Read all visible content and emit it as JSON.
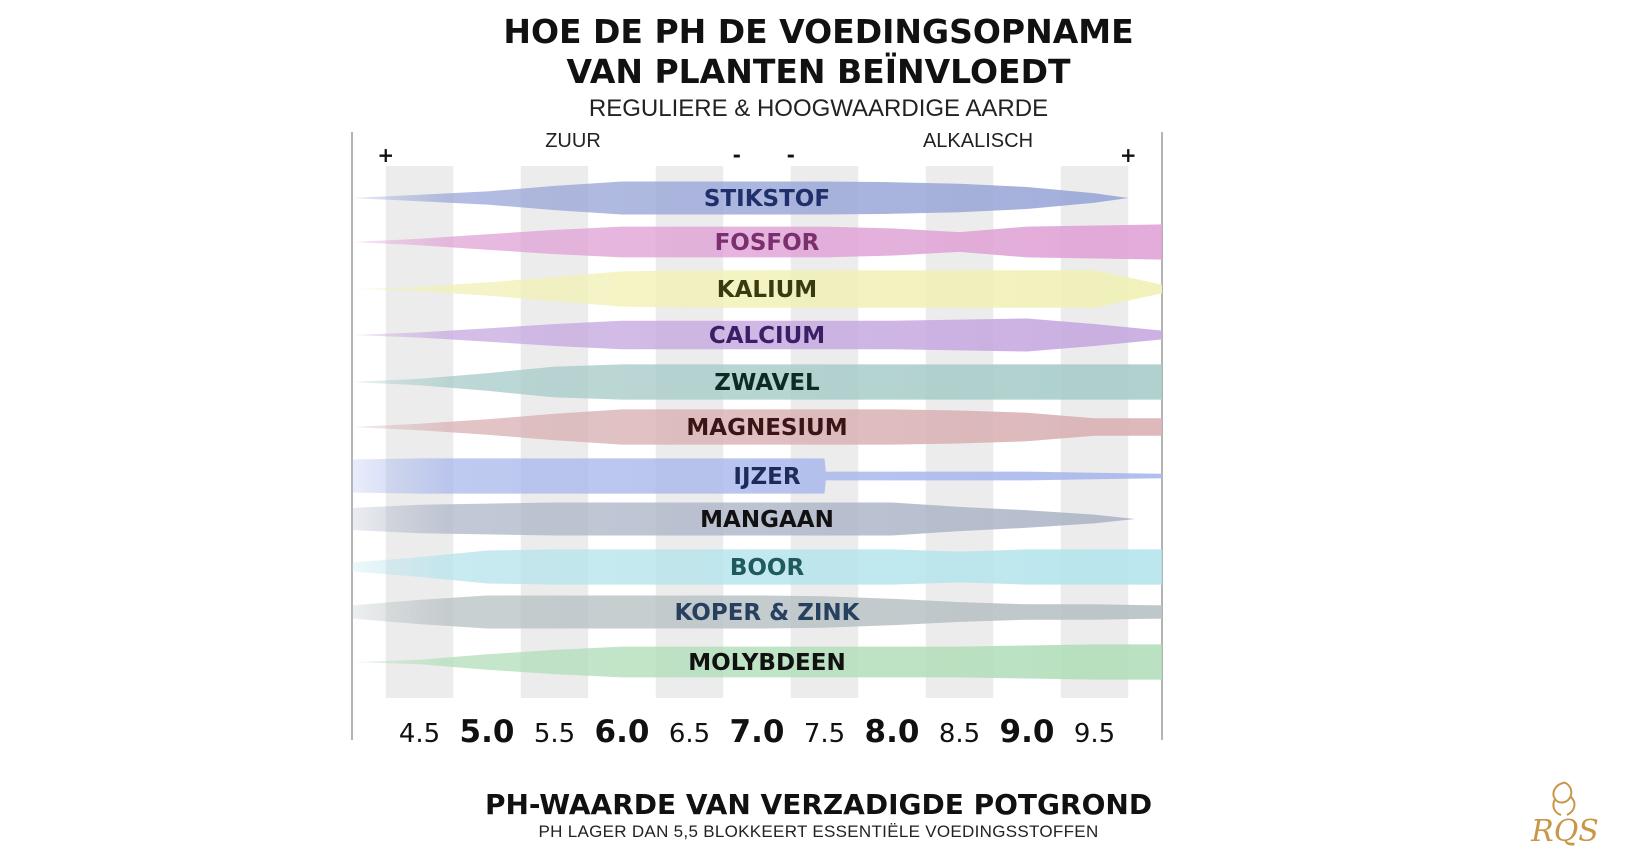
{
  "title_line1": "HOE DE PH DE VOEDINGSOPNAME",
  "title_line2": "VAN PLANTEN BEÏNVLOEDT",
  "subtitle": "REGULIERE & HOOGWAARDIGE AARDE",
  "xlabel": "PH-WAARDE VAN VERZADIGDE POTGROND",
  "note": "PH LAGER DAN 5,5 BLOKKEERT ESSENTIËLE VOEDINGSSTOFFEN",
  "logo_text": "RQS",
  "chart_data": {
    "type": "area",
    "xlim": [
      4,
      10
    ],
    "region_labels": {
      "left": "ZUUR",
      "right": "ALKALISCH"
    },
    "markers": [
      {
        "x": 4.25,
        "label": "+"
      },
      {
        "x": 6.85,
        "label": "-"
      },
      {
        "x": 7.25,
        "label": "-"
      },
      {
        "x": 9.75,
        "label": "+"
      }
    ],
    "ticks": [
      {
        "value": 4.5,
        "label": "4.5",
        "major": false
      },
      {
        "value": 5.0,
        "label": "5.0",
        "major": true
      },
      {
        "value": 5.5,
        "label": "5.5",
        "major": false
      },
      {
        "value": 6.0,
        "label": "6.0",
        "major": true
      },
      {
        "value": 6.5,
        "label": "6.5",
        "major": false
      },
      {
        "value": 7.0,
        "label": "7.0",
        "major": true
      },
      {
        "value": 7.5,
        "label": "7.5",
        "major": false
      },
      {
        "value": 8.0,
        "label": "8.0",
        "major": true
      },
      {
        "value": 8.5,
        "label": "8.5",
        "major": false
      },
      {
        "value": 9.0,
        "label": "9.0",
        "major": true
      },
      {
        "value": 9.5,
        "label": "9.5",
        "major": false
      }
    ],
    "series": [
      {
        "name": "STIKSTOF",
        "color": "#9aa7d8",
        "label_color": "#1f2f6b",
        "x": [
          4.0,
          4.5,
          5.0,
          5.5,
          6.0,
          6.5,
          7.0,
          7.5,
          8.0,
          8.5,
          9.0,
          9.5,
          9.75,
          10.0
        ],
        "w": [
          0.0,
          0.15,
          0.3,
          0.55,
          0.75,
          0.75,
          0.75,
          0.75,
          0.72,
          0.65,
          0.5,
          0.22,
          0.0,
          0.0
        ]
      },
      {
        "name": "FOSFOR",
        "color": "#e0a3d6",
        "label_color": "#7a2f6e",
        "x": [
          4.0,
          4.5,
          5.0,
          5.5,
          6.0,
          6.5,
          7.0,
          7.5,
          8.0,
          8.5,
          9.0,
          9.5,
          10.0
        ],
        "w": [
          0.0,
          0.15,
          0.35,
          0.55,
          0.7,
          0.7,
          0.7,
          0.7,
          0.62,
          0.45,
          0.7,
          0.75,
          0.8
        ]
      },
      {
        "name": "KALIUM",
        "color": "#f1f1b6",
        "label_color": "#3a3a10",
        "x": [
          4.0,
          4.5,
          5.0,
          5.5,
          6.0,
          6.5,
          7.0,
          7.5,
          8.0,
          8.5,
          9.0,
          9.5,
          10.0
        ],
        "w": [
          0.0,
          0.1,
          0.3,
          0.55,
          0.8,
          0.85,
          0.85,
          0.85,
          0.85,
          0.85,
          0.85,
          0.85,
          0.2
        ]
      },
      {
        "name": "CALCIUM",
        "color": "#c6a9e0",
        "label_color": "#3b1f66",
        "x": [
          4.0,
          4.5,
          5.0,
          5.5,
          6.0,
          6.5,
          7.0,
          7.5,
          8.0,
          8.5,
          9.0,
          9.5,
          10.0
        ],
        "w": [
          0.0,
          0.12,
          0.3,
          0.5,
          0.65,
          0.65,
          0.65,
          0.65,
          0.65,
          0.7,
          0.75,
          0.5,
          0.2
        ]
      },
      {
        "name": "ZWAVEL",
        "color": "#a7ccc9",
        "label_color": "#0f2a26",
        "x": [
          4.0,
          4.5,
          5.0,
          5.5,
          6.0,
          6.5,
          7.0,
          7.5,
          8.0,
          8.5,
          9.0,
          9.5,
          10.0
        ],
        "w": [
          0.0,
          0.15,
          0.4,
          0.7,
          0.8,
          0.8,
          0.8,
          0.8,
          0.8,
          0.8,
          0.8,
          0.8,
          0.8
        ]
      },
      {
        "name": "MAGNESIUM",
        "color": "#d9b1b4",
        "label_color": "#3b1416",
        "x": [
          4.0,
          4.5,
          5.0,
          5.5,
          6.0,
          6.5,
          7.0,
          7.5,
          8.0,
          8.5,
          9.0,
          9.5,
          10.0
        ],
        "w": [
          0.0,
          0.15,
          0.35,
          0.6,
          0.8,
          0.8,
          0.8,
          0.8,
          0.8,
          0.75,
          0.65,
          0.4,
          0.4
        ]
      },
      {
        "name": "IJZER",
        "color": "#a9b8ec",
        "label_color": "#1d2a5a",
        "x": [
          4.0,
          4.5,
          5.0,
          5.5,
          6.0,
          6.5,
          7.0,
          7.5,
          7.51,
          8.0,
          8.5,
          9.0,
          9.5,
          10.0
        ],
        "w": [
          0.75,
          0.8,
          0.8,
          0.8,
          0.8,
          0.8,
          0.8,
          0.8,
          0.2,
          0.2,
          0.2,
          0.2,
          0.15,
          0.1
        ]
      },
      {
        "name": "MANGAAN",
        "color": "#aeb6c8",
        "label_color": "#111111",
        "x": [
          4.0,
          4.5,
          5.0,
          5.5,
          6.0,
          6.5,
          7.0,
          7.5,
          8.0,
          8.5,
          9.0,
          9.5,
          9.8,
          10.0
        ],
        "w": [
          0.5,
          0.65,
          0.7,
          0.75,
          0.75,
          0.75,
          0.75,
          0.75,
          0.75,
          0.55,
          0.4,
          0.2,
          0.0,
          0.0
        ]
      },
      {
        "name": "BOOR",
        "color": "#b5e4ec",
        "label_color": "#1f5a5f",
        "x": [
          4.0,
          4.5,
          5.0,
          5.5,
          6.0,
          6.5,
          7.0,
          7.5,
          8.0,
          8.5,
          9.0,
          9.5,
          10.0
        ],
        "w": [
          0.2,
          0.45,
          0.75,
          0.8,
          0.8,
          0.8,
          0.8,
          0.8,
          0.8,
          0.7,
          0.8,
          0.8,
          0.8
        ]
      },
      {
        "name": "KOPER & ZINK",
        "color": "#b7c1c4",
        "label_color": "#28405f",
        "x": [
          4.0,
          4.5,
          5.0,
          5.5,
          6.0,
          6.5,
          7.0,
          7.5,
          8.0,
          8.5,
          9.0,
          9.5,
          10.0
        ],
        "w": [
          0.3,
          0.55,
          0.75,
          0.75,
          0.75,
          0.75,
          0.75,
          0.72,
          0.6,
          0.45,
          0.35,
          0.35,
          0.3
        ]
      },
      {
        "name": "MOLYBDEEN",
        "color": "#b2deba",
        "label_color": "#111111",
        "x": [
          4.0,
          4.5,
          5.0,
          5.5,
          6.0,
          6.5,
          7.0,
          7.5,
          8.0,
          8.5,
          9.0,
          9.5,
          10.0
        ],
        "w": [
          0.0,
          0.1,
          0.35,
          0.55,
          0.7,
          0.7,
          0.7,
          0.7,
          0.7,
          0.7,
          0.75,
          0.8,
          0.8
        ]
      }
    ]
  }
}
